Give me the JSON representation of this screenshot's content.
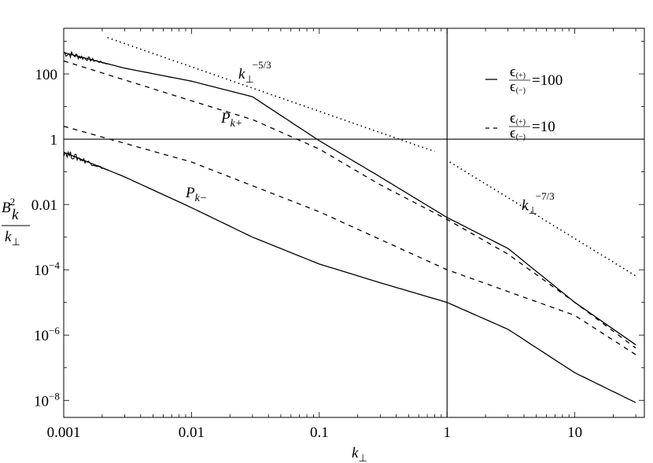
{
  "chart_data": {
    "type": "line",
    "scale": {
      "x": "log",
      "y": "log"
    },
    "xlim": [
      0.001,
      35
    ],
    "ylim": [
      3e-09,
      2500
    ],
    "xlabel": {
      "base": "k",
      "sub": "⊥"
    },
    "ylabel": {
      "num_base": "B",
      "num_sub": "k",
      "num_sup": "2",
      "den_base": "k",
      "den_sub": "⊥"
    },
    "x_ticks": [
      {
        "value": 0.001,
        "label": "0.001"
      },
      {
        "value": 0.01,
        "label": "0.01"
      },
      {
        "value": 0.1,
        "label": "0.1"
      },
      {
        "value": 1,
        "label": "1"
      },
      {
        "value": 10,
        "label": "10"
      }
    ],
    "y_ticks": [
      {
        "value": 100,
        "label": "100"
      },
      {
        "value": 1,
        "label": "1"
      },
      {
        "value": 0.01,
        "label": "0.01"
      },
      {
        "value": 0.0001,
        "label": "10",
        "sup": "−4"
      },
      {
        "value": 1e-06,
        "label": "10",
        "sup": "−6"
      },
      {
        "value": 1e-08,
        "label": "10",
        "sup": "−8"
      }
    ],
    "reference_lines": [
      {
        "orientation": "vertical",
        "value": 1
      },
      {
        "orientation": "horizontal",
        "value": 1
      }
    ],
    "series": [
      {
        "style": "solid",
        "points": [
          [
            0.001,
            450
          ],
          [
            0.003,
            150
          ],
          [
            0.01,
            60
          ],
          [
            0.03,
            20
          ],
          [
            0.1,
            0.9
          ],
          [
            0.3,
            0.07
          ],
          [
            1,
            0.004
          ],
          [
            3,
            0.00045
          ],
          [
            10,
            1e-05
          ],
          [
            30,
            5e-07
          ]
        ]
      },
      {
        "style": "dashed",
        "points": [
          [
            0.001,
            250
          ],
          [
            0.01,
            15
          ],
          [
            0.03,
            4
          ],
          [
            0.1,
            0.5
          ],
          [
            0.3,
            0.04
          ],
          [
            1,
            0.0035
          ],
          [
            3,
            0.0003
          ],
          [
            10,
            1e-05
          ],
          [
            30,
            4e-07
          ]
        ]
      },
      {
        "style": "dashed",
        "points": [
          [
            0.001,
            2.5
          ],
          [
            0.01,
            0.2
          ],
          [
            0.1,
            0.006
          ],
          [
            1,
            0.0001
          ],
          [
            10,
            4e-06
          ],
          [
            30,
            2.5e-07
          ]
        ]
      },
      {
        "style": "solid",
        "points": [
          [
            0.001,
            0.4
          ],
          [
            0.003,
            0.07
          ],
          [
            0.01,
            0.008
          ],
          [
            0.03,
            0.001
          ],
          [
            0.1,
            0.00015
          ],
          [
            0.3,
            4e-05
          ],
          [
            1,
            1e-05
          ],
          [
            3,
            1.5e-06
          ],
          [
            10,
            7e-08
          ],
          [
            30,
            8.5e-09
          ]
        ]
      },
      {
        "style": "dotted",
        "points": [
          [
            0.0022,
            1300
          ],
          [
            0.8,
            0.42
          ]
        ]
      },
      {
        "style": "dotted",
        "points": [
          [
            1.05,
            0.2
          ],
          [
            30,
            6.5e-05
          ]
        ]
      }
    ],
    "annotations": [
      {
        "base": "k",
        "sub": "⊥",
        "sup": "−5/3"
      },
      {
        "base": "P",
        "sub": "k+"
      },
      {
        "base": "P",
        "sub": "k−"
      },
      {
        "base": "k",
        "sub": "⊥",
        "sup": "−7/3"
      }
    ],
    "legend": {
      "placement": "top-right",
      "entries": [
        {
          "style": "solid",
          "num": "ϵ",
          "num_sub": "(+)",
          "den": "ϵ",
          "den_sub": "(−)",
          "value": "=100"
        },
        {
          "style": "dashed",
          "num": "ϵ",
          "num_sub": "(+)",
          "den": "ϵ",
          "den_sub": "(−)",
          "value": "=10"
        }
      ]
    }
  }
}
